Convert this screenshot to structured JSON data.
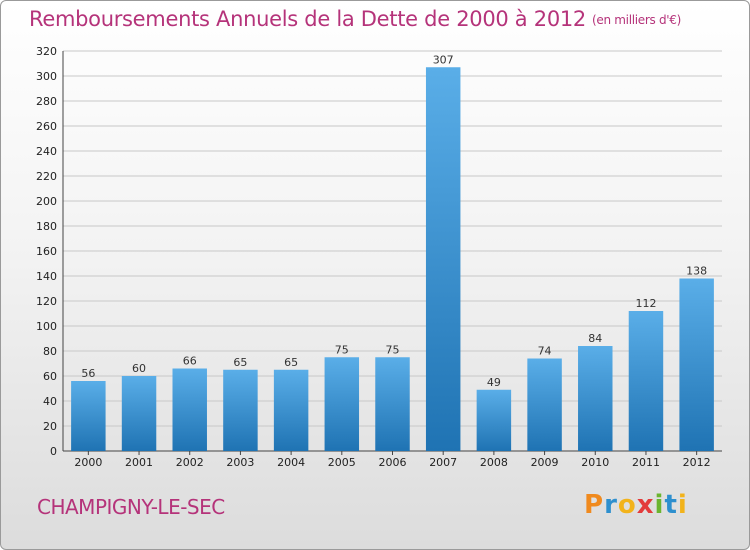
{
  "header": {
    "title": "Remboursements Annuels de la Dette de 2000 à 2012",
    "unit": "(en milliers d'€)"
  },
  "footer": {
    "town": "CHAMPIGNY-LE-SEC",
    "brand_letters": [
      {
        "ch": "P",
        "color": "#f08a1e"
      },
      {
        "ch": "r",
        "color": "#2d8fce"
      },
      {
        "ch": "o",
        "color": "#f2b31b"
      },
      {
        "ch": "x",
        "color": "#e33b3b"
      },
      {
        "ch": "i",
        "color": "#6bb52f"
      },
      {
        "ch": "t",
        "color": "#2d8fce"
      },
      {
        "ch": "i",
        "color": "#f2b31b"
      }
    ]
  },
  "colors": {
    "title": "#b5337a",
    "bar_top": "#5aaee8",
    "bar_bottom": "#1f73b3",
    "grid": "#c8c8c8"
  },
  "chart_data": {
    "type": "bar",
    "title": "Remboursements Annuels de la Dette de 2000 à 2012",
    "subtitle": "(en milliers d'€)",
    "categories": [
      "2000",
      "2001",
      "2002",
      "2003",
      "2004",
      "2005",
      "2006",
      "2007",
      "2008",
      "2009",
      "2010",
      "2011",
      "2012"
    ],
    "values": [
      56,
      60,
      66,
      65,
      65,
      75,
      75,
      307,
      49,
      74,
      84,
      112,
      138
    ],
    "ylim": [
      0,
      320
    ],
    "yticks": [
      0,
      20,
      40,
      60,
      80,
      100,
      120,
      140,
      160,
      180,
      200,
      220,
      240,
      260,
      280,
      300,
      320
    ],
    "grid": true,
    "xlabel": "",
    "ylabel": ""
  }
}
